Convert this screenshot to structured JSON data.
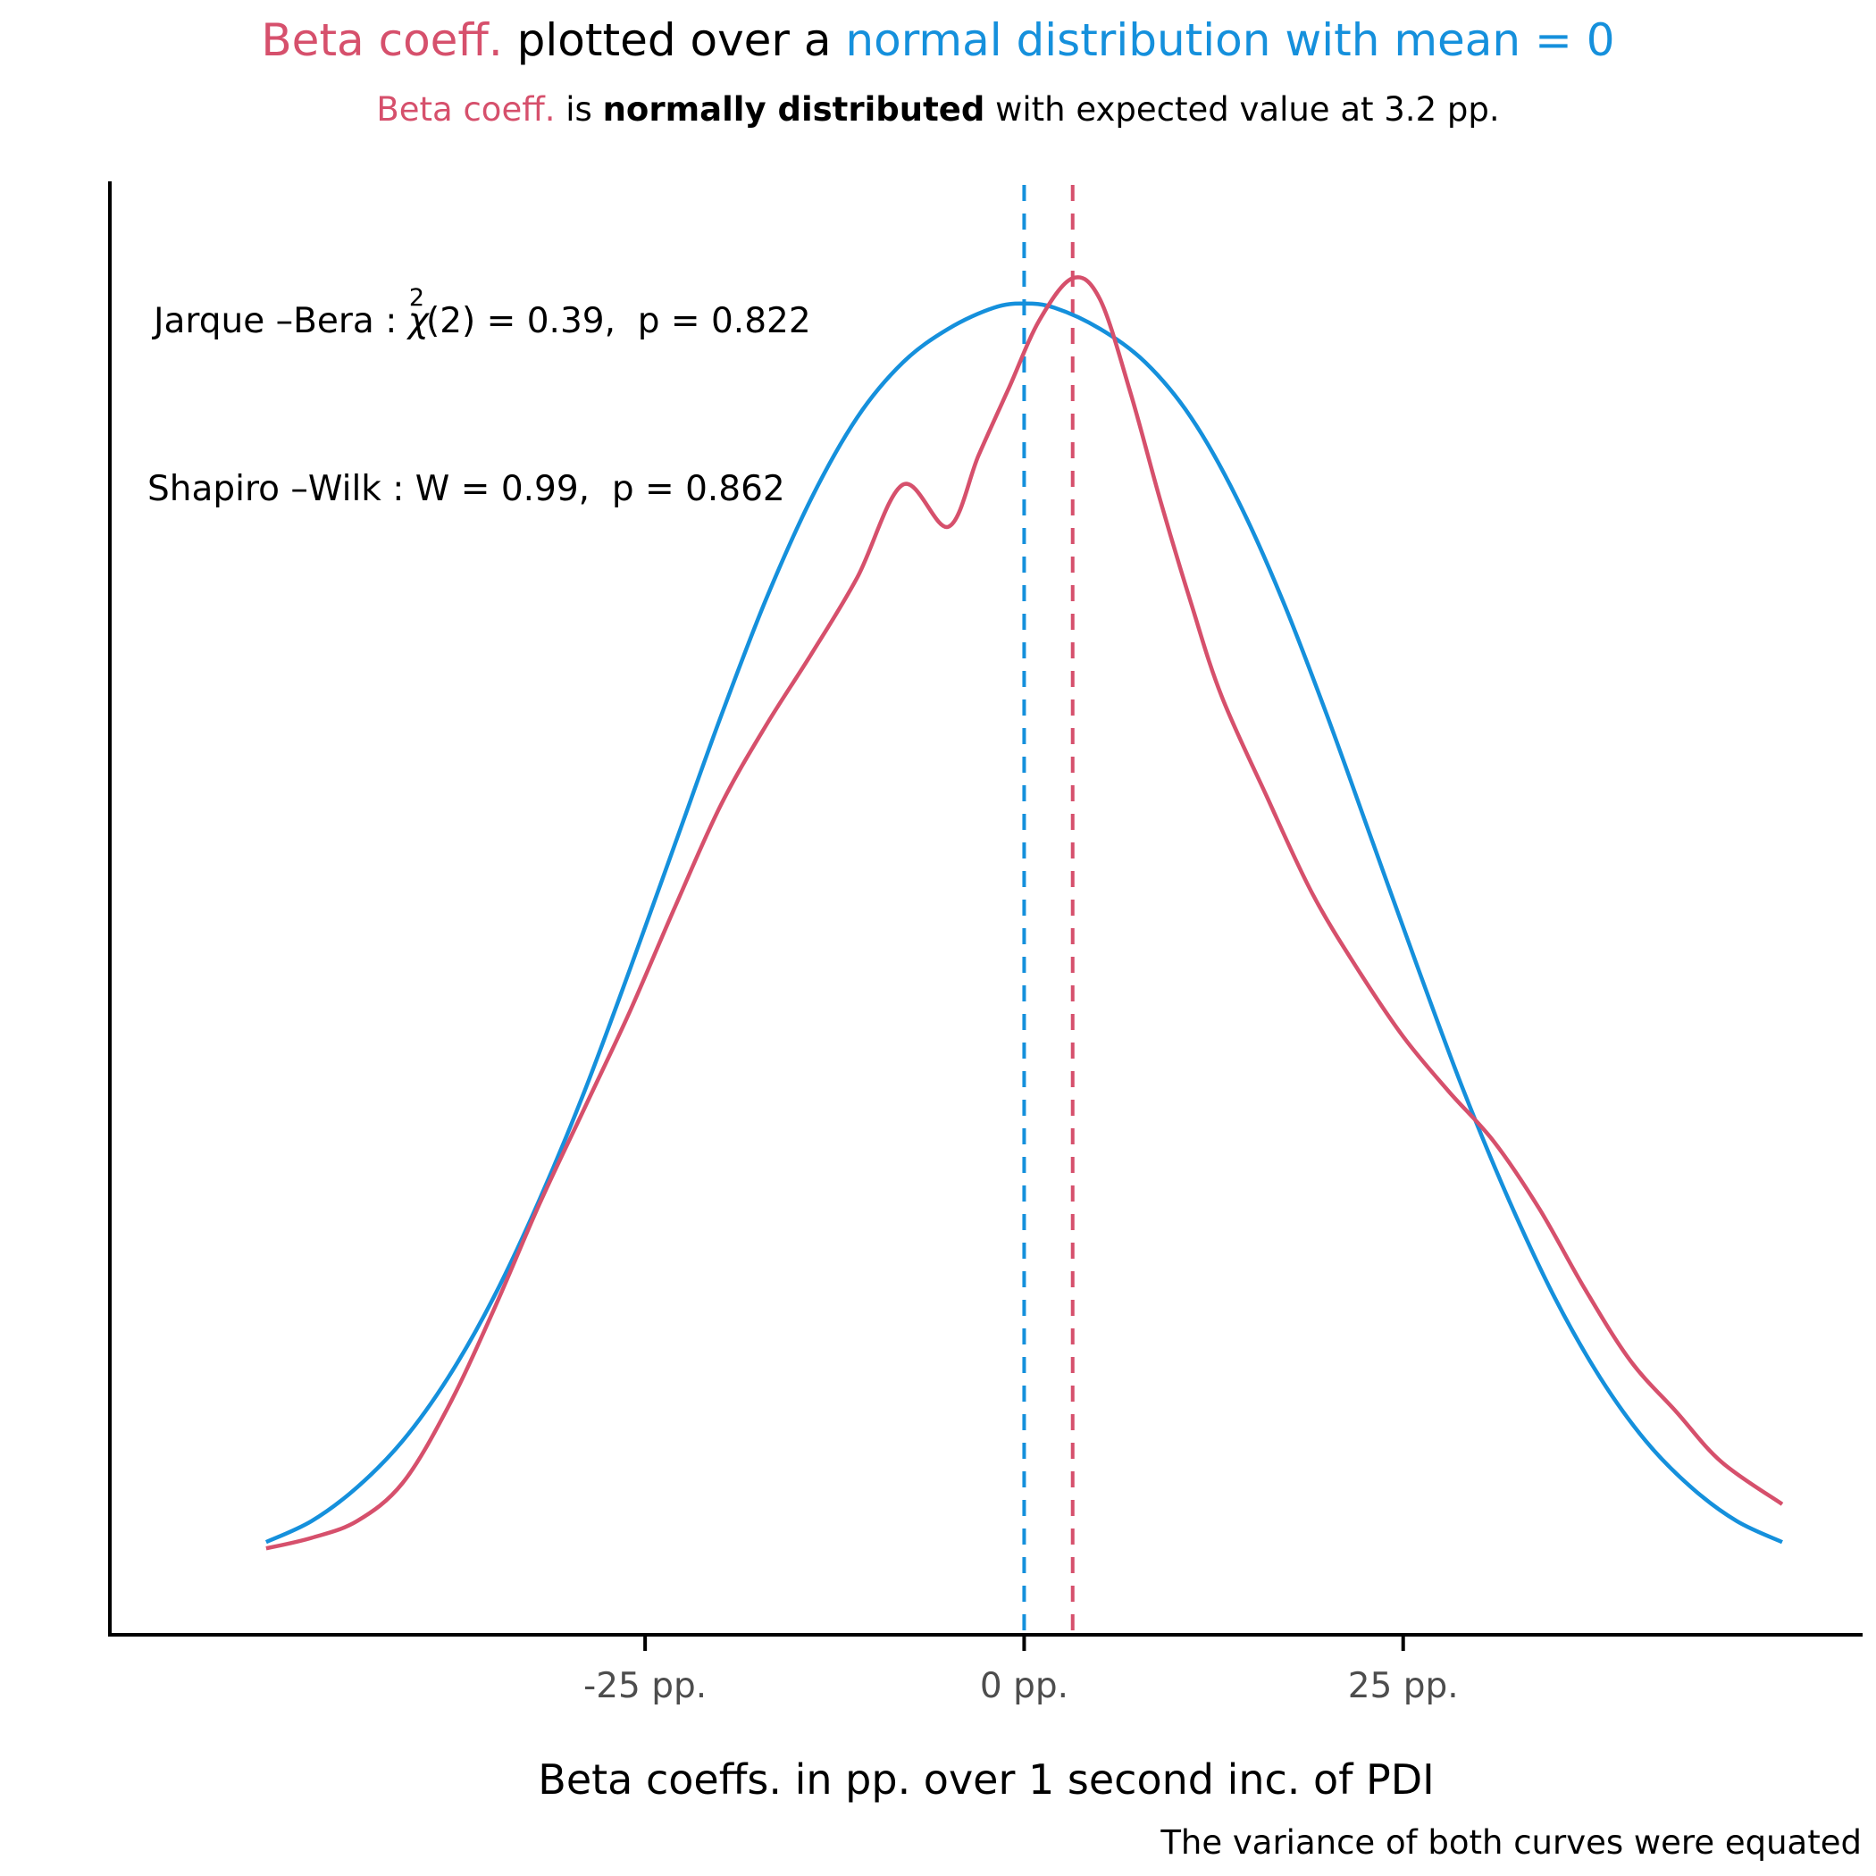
{
  "colors": {
    "beta": "#d6506c",
    "normal": "#1590dc",
    "axis": "#000000",
    "tick_label": "#4d4d4d"
  },
  "title": {
    "part1": "Beta coeff.",
    "part2": " plotted over a ",
    "part3": "normal distribution with mean = 0"
  },
  "subtitle": {
    "part1": "Beta coeff.",
    "part2": " is ",
    "part3": "normally distributed",
    "part4": " with expected value at 3.2 pp."
  },
  "annotations": {
    "jarque_bera": {
      "pre": "Jarque –Bera : ",
      "chi": "χ",
      "sup": "2",
      "post": "(2) = 0.39,  p = 0.822"
    },
    "shapiro_wilk": "Shapiro –Wilk : W = 0.99,  p = 0.862"
  },
  "caption": "The variance of both curves were equated",
  "chart_data": {
    "type": "line",
    "xlabel": "Beta coeffs. in pp. over 1 second inc. of PDI",
    "ylabel": "",
    "xlim": [
      -55,
      50
    ],
    "ylim": [
      0,
      0.0345
    ],
    "x_ticks": [
      -25,
      0,
      25
    ],
    "x_tick_labels": [
      "-25 pp.",
      "0 pp.",
      "25 pp."
    ],
    "grid": false,
    "vlines": [
      {
        "x": 0,
        "style": "dashed",
        "color": "#1590dc"
      },
      {
        "x": 3.2,
        "style": "dashed",
        "color": "#d6506c"
      }
    ],
    "series": [
      {
        "name": "Beta coeff.",
        "color": "#d6506c",
        "x": [
          -50,
          -47,
          -44,
          -41,
          -38,
          -35,
          -32,
          -29,
          -26,
          -23,
          -20,
          -17,
          -14,
          -11,
          -8,
          -5,
          -3,
          -1,
          1,
          3.2,
          5,
          7,
          9,
          11,
          13,
          16,
          19,
          22,
          25,
          28,
          31,
          34,
          37,
          40,
          43,
          46,
          50
        ],
        "y": [
          0.00205,
          0.0023,
          0.0027,
          0.0036,
          0.0054,
          0.0077,
          0.0102,
          0.0125,
          0.0148,
          0.0173,
          0.0197,
          0.0216,
          0.0233,
          0.0251,
          0.0273,
          0.0263,
          0.028,
          0.0296,
          0.0312,
          0.0322,
          0.0317,
          0.0295,
          0.0269,
          0.0245,
          0.0223,
          0.0199,
          0.0176,
          0.0158,
          0.0142,
          0.0129,
          0.0117,
          0.0101,
          0.0082,
          0.0065,
          0.0053,
          0.0041,
          0.0031
        ]
      },
      {
        "name": "normal distribution with mean = 0",
        "color": "#1590dc",
        "x": [
          -50,
          -47,
          -44,
          -41,
          -38,
          -35,
          -32,
          -29,
          -26,
          -23,
          -20,
          -17,
          -14,
          -11,
          -8,
          -5,
          -2,
          0,
          2,
          5,
          8,
          11,
          14,
          17,
          20,
          23,
          26,
          29,
          32,
          35,
          38,
          41,
          44,
          47,
          50
        ],
        "y": [
          0.0022,
          0.0027,
          0.0035,
          0.0046,
          0.0061,
          0.008,
          0.0103,
          0.0129,
          0.0158,
          0.0188,
          0.0218,
          0.0246,
          0.027,
          0.0289,
          0.0302,
          0.031,
          0.0315,
          0.0316,
          0.0315,
          0.031,
          0.0302,
          0.0289,
          0.027,
          0.0246,
          0.0218,
          0.0188,
          0.0158,
          0.0129,
          0.0103,
          0.008,
          0.0061,
          0.0046,
          0.0035,
          0.0027,
          0.0022
        ]
      }
    ]
  }
}
